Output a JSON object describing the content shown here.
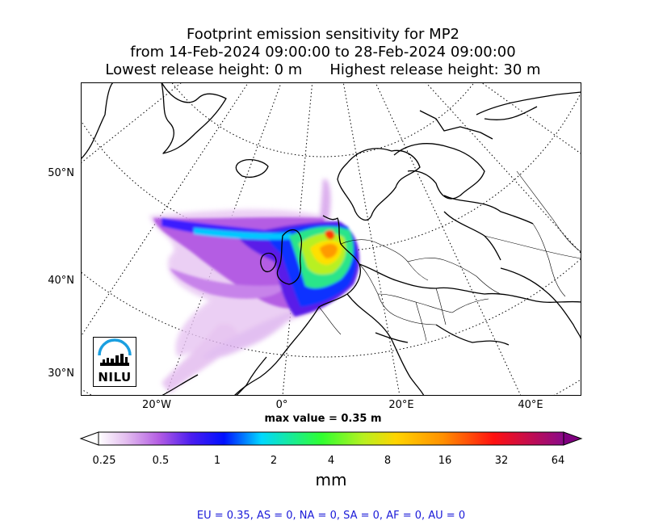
{
  "title": {
    "line1": "Footprint emission sensitivity for MP2",
    "line2": "from 14-Feb-2024 09:00:00 to 28-Feb-2024 09:00:00",
    "lowest": "Lowest release height: 0 m",
    "highest": "Highest release height: 30 m"
  },
  "map": {
    "lat_labels": [
      "50°N",
      "40°N",
      "30°N"
    ],
    "lon_labels": [
      "20°W",
      "0°",
      "20°E",
      "40°E"
    ],
    "projection": "polar stereographic",
    "graticule": "dotted",
    "max_value_text": "max value = 0.35 m",
    "logo_text": "NILU"
  },
  "colorbar": {
    "ticks": [
      "0.25",
      "0.5",
      "1",
      "2",
      "4",
      "8",
      "16",
      "32",
      "64"
    ],
    "unit": "mm",
    "colors": [
      "#ffffff",
      "#d9a8e8",
      "#9b30e0",
      "#1010ff",
      "#00e8ff",
      "#33ff33",
      "#ffcc00",
      "#ff8800",
      "#ff0000",
      "#880088"
    ]
  },
  "summary": "EU = 0.35,  AS = 0,  NA = 0,  SA = 0,  AF = 0,  AU = 0"
}
